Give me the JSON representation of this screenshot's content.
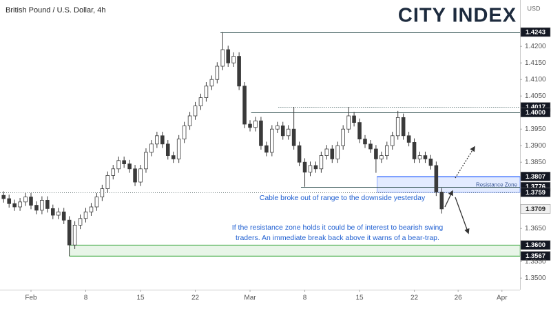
{
  "chart_data": {
    "type": "candlestick",
    "title": "British Pound / U.S. Dollar, 4h",
    "logo": "CITY INDEX",
    "currency": "USD",
    "xlim": [
      -2.83,
      44.65
    ],
    "ylim": [
      1.3465,
      1.434
    ],
    "xticks": [
      {
        "value": 0,
        "label": "Feb"
      },
      {
        "value": 5,
        "label": "8"
      },
      {
        "value": 10,
        "label": "15"
      },
      {
        "value": 15,
        "label": "22"
      },
      {
        "value": 20,
        "label": "Mar"
      },
      {
        "value": 25,
        "label": "8"
      },
      {
        "value": 30,
        "label": "15"
      },
      {
        "value": 35,
        "label": "22"
      },
      {
        "value": 39,
        "label": "26"
      },
      {
        "value": 43,
        "label": "Apr"
      }
    ],
    "yticks": [
      {
        "value": 1.42,
        "label": "1.4200"
      },
      {
        "value": 1.415,
        "label": "1.4150"
      },
      {
        "value": 1.41,
        "label": "1.4100"
      },
      {
        "value": 1.405,
        "label": "1.4050"
      },
      {
        "value": 1.395,
        "label": "1.3950"
      },
      {
        "value": 1.39,
        "label": "1.3900"
      },
      {
        "value": 1.385,
        "label": "1.3850"
      },
      {
        "value": 1.365,
        "label": "1.3650"
      },
      {
        "value": 1.355,
        "label": "1.3550"
      },
      {
        "value": 1.35,
        "label": "1.3500"
      }
    ],
    "up_color": "#ffffff",
    "down_color": "#3a3a3a",
    "wick_color": "#3a3a3a",
    "x": [
      -2.5,
      -2,
      -1.5,
      -1,
      -0.5,
      0,
      0.5,
      1,
      1.5,
      2,
      2.5,
      3,
      3.5,
      4,
      4.5,
      5,
      5.5,
      6,
      6.5,
      7,
      7.5,
      8,
      8.5,
      9,
      9.5,
      10,
      10.5,
      11,
      11.5,
      12,
      12.5,
      13,
      13.5,
      14,
      14.5,
      15,
      15.5,
      16,
      16.5,
      17,
      17.5,
      18,
      18.5,
      19,
      19.5,
      20,
      20.5,
      21,
      21.5,
      22,
      22.5,
      23,
      23.5,
      24,
      24.5,
      25,
      25.5,
      26,
      26.5,
      27,
      27.5,
      28,
      28.5,
      29,
      29.5,
      30,
      30.5,
      31,
      31.5,
      32,
      32.5,
      33,
      33.5,
      34,
      34.5,
      35,
      35.5,
      36,
      36.5,
      37,
      37.5
    ],
    "open": [
      1.375,
      1.374,
      1.3725,
      1.3715,
      1.373,
      1.3745,
      1.372,
      1.3705,
      1.3735,
      1.371,
      1.369,
      1.37,
      1.3675,
      1.36,
      1.366,
      1.368,
      1.37,
      1.3715,
      1.3745,
      1.377,
      1.381,
      1.383,
      1.3855,
      1.3845,
      1.383,
      1.379,
      1.383,
      1.388,
      1.3905,
      1.393,
      1.3905,
      1.387,
      1.386,
      1.392,
      1.396,
      1.399,
      1.402,
      1.4045,
      1.408,
      1.41,
      1.414,
      1.419,
      1.415,
      1.417,
      1.408,
      1.3965,
      1.3955,
      1.3975,
      1.39,
      1.388,
      1.395,
      1.396,
      1.393,
      1.395,
      1.39,
      1.385,
      1.382,
      1.384,
      1.383,
      1.387,
      1.389,
      1.386,
      1.39,
      1.395,
      1.399,
      1.397,
      1.392,
      1.3905,
      1.389,
      1.386,
      1.387,
      1.39,
      1.393,
      1.3985,
      1.393,
      1.391,
      1.386,
      1.387,
      1.386,
      1.384,
      1.376
    ],
    "high": [
      1.3762,
      1.3752,
      1.3737,
      1.3742,
      1.3757,
      1.3757,
      1.3732,
      1.3747,
      1.3747,
      1.3722,
      1.3712,
      1.3712,
      1.3687,
      1.3672,
      1.3692,
      1.3712,
      1.3727,
      1.3757,
      1.3782,
      1.3822,
      1.3842,
      1.3867,
      1.3867,
      1.3857,
      1.3842,
      1.3842,
      1.3892,
      1.3917,
      1.3942,
      1.3942,
      1.3917,
      1.3882,
      1.3932,
      1.3972,
      1.4002,
      1.4032,
      1.4057,
      1.4092,
      1.4112,
      1.4152,
      1.4243,
      1.4202,
      1.4182,
      1.4182,
      1.4092,
      1.3977,
      1.3987,
      1.3987,
      1.3912,
      1.3962,
      1.3972,
      1.3972,
      1.3962,
      1.4017,
      1.3912,
      1.3862,
      1.3852,
      1.3852,
      1.3882,
      1.3902,
      1.3902,
      1.3912,
      1.3962,
      1.4017,
      1.4002,
      1.3982,
      1.3932,
      1.3917,
      1.3902,
      1.3882,
      1.3912,
      1.3942,
      1.4005,
      1.3997,
      1.3942,
      1.3922,
      1.3882,
      1.3882,
      1.3872,
      1.3852,
      1.3772
    ],
    "low": [
      1.3728,
      1.3713,
      1.3703,
      1.3703,
      1.3718,
      1.3708,
      1.3693,
      1.3693,
      1.3698,
      1.3678,
      1.3678,
      1.3663,
      1.3567,
      1.3588,
      1.3648,
      1.3668,
      1.3688,
      1.3703,
      1.3733,
      1.3758,
      1.3798,
      1.3818,
      1.3833,
      1.3818,
      1.3778,
      1.3778,
      1.3818,
      1.3868,
      1.3893,
      1.3893,
      1.3858,
      1.3848,
      1.3848,
      1.3908,
      1.3948,
      1.3978,
      1.4008,
      1.4033,
      1.4068,
      1.4088,
      1.4128,
      1.4138,
      1.4138,
      1.4068,
      1.3953,
      1.3943,
      1.3943,
      1.3888,
      1.3868,
      1.3868,
      1.3938,
      1.3918,
      1.3918,
      1.3888,
      1.3838,
      1.3776,
      1.3808,
      1.3818,
      1.3818,
      1.3858,
      1.3848,
      1.3848,
      1.3888,
      1.3938,
      1.3958,
      1.3908,
      1.3893,
      1.3878,
      1.3818,
      1.3848,
      1.3858,
      1.3888,
      1.3918,
      1.3918,
      1.3898,
      1.3848,
      1.3848,
      1.3848,
      1.3828,
      1.3748,
      1.3695
    ],
    "close": [
      1.374,
      1.3725,
      1.3715,
      1.373,
      1.3745,
      1.372,
      1.3705,
      1.3735,
      1.371,
      1.369,
      1.37,
      1.3675,
      1.36,
      1.366,
      1.368,
      1.37,
      1.3715,
      1.3745,
      1.377,
      1.381,
      1.383,
      1.3855,
      1.3845,
      1.383,
      1.379,
      1.383,
      1.388,
      1.3905,
      1.393,
      1.3905,
      1.387,
      1.386,
      1.392,
      1.396,
      1.399,
      1.402,
      1.4045,
      1.408,
      1.41,
      1.414,
      1.419,
      1.415,
      1.417,
      1.408,
      1.3965,
      1.3955,
      1.3975,
      1.39,
      1.388,
      1.395,
      1.396,
      1.393,
      1.395,
      1.39,
      1.385,
      1.382,
      1.384,
      1.383,
      1.387,
      1.389,
      1.386,
      1.39,
      1.395,
      1.399,
      1.397,
      1.392,
      1.3905,
      1.389,
      1.386,
      1.387,
      1.39,
      1.393,
      1.3985,
      1.393,
      1.391,
      1.386,
      1.387,
      1.386,
      1.384,
      1.376,
      1.3709
    ],
    "zones": [
      {
        "name": "Resistance Zone",
        "low": 1.3759,
        "high": 1.3807,
        "start": 31.6,
        "color": "#2962ff"
      },
      {
        "low": 1.3567,
        "high": 1.36,
        "start": 3.5,
        "color": "#4caf50"
      }
    ],
    "levels": [
      {
        "value": 1.4243,
        "label": "1.4243",
        "start": 17.3,
        "style": "solid",
        "line_color": "#2f4f4f",
        "box": "#131722"
      },
      {
        "value": 1.4017,
        "label": "1.4017",
        "start": 22.6,
        "style": "dotted",
        "line_color": "#2f4f4f",
        "box": "#131722"
      },
      {
        "value": 1.4,
        "label": "1.4000",
        "start": 20.1,
        "style": "solid",
        "line_color": "#2f4f4f",
        "box": "#131722"
      },
      {
        "value": 1.3807,
        "label": "1.3807",
        "start": 31.6,
        "style": "solid",
        "line_color": "#2962ff",
        "box": "#131722"
      },
      {
        "value": 1.3776,
        "label": "1.3776",
        "start": 24.65,
        "style": "solid",
        "line_color": "#2f4f4f",
        "box": "#131722"
      },
      {
        "value": 1.3759,
        "label": "1.3759",
        "start": -2.83,
        "style": "dotted",
        "line_color": "#5a6b6b",
        "box": "#131722"
      },
      {
        "value": 1.3709,
        "label": "1.3709",
        "box": "#f0f0f0"
      },
      {
        "value": 1.36,
        "label": "1.3600",
        "start": 3.5,
        "style": "solid",
        "line_color": "#4caf50",
        "box": "#131722"
      },
      {
        "value": 1.3567,
        "label": "1.3567",
        "start": 3.5,
        "style": "solid",
        "line_color": "#4caf50",
        "box": "#131722"
      }
    ],
    "annotations": [
      "Cable broke out of range to the downside yesterday",
      "If the resistance zone holds it could be of interest to bearish swing",
      "traders. An immediate break back above it warns of a bear-trap."
    ]
  }
}
